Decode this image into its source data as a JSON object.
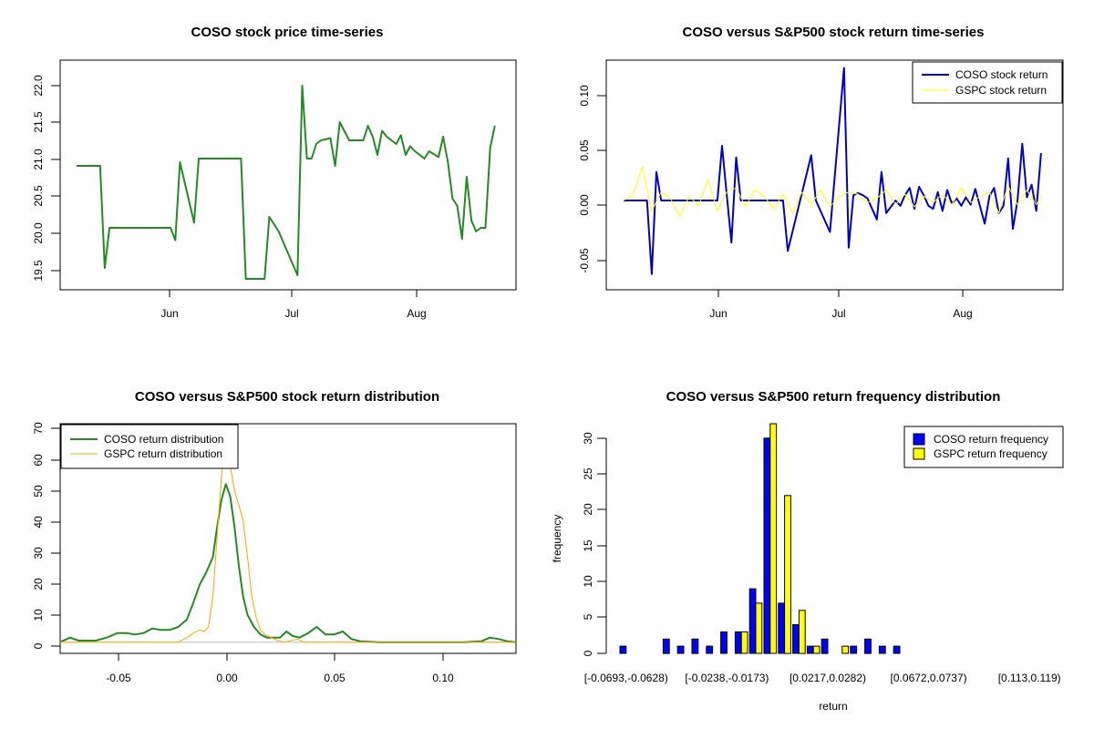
{
  "chart_data": [
    {
      "id": "price",
      "type": "line",
      "title": "COSO stock price time-series",
      "xlabel": "",
      "ylabel": "",
      "x_ticks": [
        "Jun",
        "Jul",
        "Aug"
      ],
      "y_ticks": [
        "19.5",
        "20.0",
        "20.5",
        "21.0",
        "21.5",
        "22.0"
      ],
      "xlim": [
        0,
        90
      ],
      "ylim": [
        19.3,
        22.3
      ],
      "series": [
        {
          "color": "#228B22",
          "x": [
            0,
            5,
            6,
            7,
            20,
            21,
            22,
            25,
            26,
            27,
            35,
            36,
            40,
            41,
            43,
            44,
            47,
            48,
            49,
            50,
            51,
            52,
            54,
            55,
            56,
            58,
            59,
            60,
            61,
            62,
            63,
            64,
            65,
            66,
            67,
            68,
            69,
            70,
            71,
            72,
            73,
            74,
            75,
            77,
            78,
            79,
            80,
            81,
            82,
            83,
            84,
            85,
            86,
            87,
            88,
            89
          ],
          "y": [
            20.9,
            20.9,
            19.5,
            20.05,
            20.05,
            19.88,
            20.95,
            20.12,
            21.0,
            21.0,
            21.0,
            19.35,
            19.35,
            20.2,
            20.0,
            19.85,
            19.4,
            22.0,
            21.0,
            21.0,
            21.2,
            21.25,
            21.28,
            20.9,
            21.5,
            21.25,
            21.25,
            21.25,
            21.25,
            21.45,
            21.3,
            21.05,
            21.38,
            21.3,
            21.25,
            21.2,
            21.32,
            21.05,
            21.17,
            21.1,
            21.05,
            21.0,
            21.1,
            21.02,
            21.3,
            20.95,
            20.45,
            20.35,
            19.9,
            20.75,
            20.15,
            20.0,
            20.05,
            20.05,
            21.15,
            21.45
          ]
        }
      ]
    },
    {
      "id": "returns",
      "type": "line",
      "title": "COSO versus S&P500 stock return time-series",
      "xlabel": "",
      "ylabel": "",
      "x_ticks": [
        "Jun",
        "Jul",
        "Aug"
      ],
      "y_ticks": [
        "-0.05",
        "0.00",
        "0.05",
        "0.10"
      ],
      "xlim": [
        0,
        90
      ],
      "ylim": [
        -0.078,
        0.13
      ],
      "legend": [
        "COSO stock return",
        "GSPC stock return"
      ],
      "legend_position": "top-right",
      "series": [
        {
          "name": "COSO stock return",
          "color": "#0000CD",
          "x": [
            0,
            5,
            6,
            7,
            8,
            20,
            21,
            22,
            23,
            24,
            25,
            26,
            27,
            34,
            35,
            36,
            40,
            41,
            44,
            47,
            48,
            49,
            50,
            51,
            52,
            54,
            55,
            56,
            58,
            59,
            60,
            61,
            62,
            63,
            64,
            65,
            66,
            67,
            68,
            69,
            70,
            71,
            72,
            73,
            74,
            75,
            77,
            78,
            79,
            80,
            81,
            82,
            83,
            84,
            85,
            86,
            87,
            88,
            89
          ],
          "y": [
            0,
            0,
            -0.07,
            0.027,
            0,
            0,
            0.052,
            0.005,
            -0.04,
            0.041,
            0,
            0,
            0,
            0,
            -0.048,
            -0.03,
            0.043,
            0,
            -0.03,
            0.126,
            -0.045,
            0.005,
            0.007,
            0.005,
            0.002,
            -0.018,
            0.027,
            -0.012,
            0,
            -0.005,
            0.005,
            0.012,
            -0.008,
            0.013,
            0.005,
            -0.005,
            -0.008,
            0.008,
            -0.01,
            0.01,
            -0.003,
            0.002,
            -0.005,
            0.003,
            -0.004,
            0.011,
            -0.022,
            0.004,
            0.012,
            -0.012,
            -0.005,
            0.04,
            -0.027,
            0,
            0.054,
            0.003,
            0.015,
            -0.01,
            0.045
          ]
        },
        {
          "name": "GSPC stock return",
          "color": "#FFFF00",
          "x": [
            0,
            2,
            4,
            6,
            8,
            10,
            12,
            14,
            16,
            18,
            20,
            22,
            24,
            26,
            28,
            30,
            32,
            34,
            36,
            38,
            40,
            42,
            44,
            46,
            48,
            50,
            52,
            54,
            56,
            58,
            60,
            62,
            64,
            66,
            68,
            70,
            72,
            74,
            76,
            78,
            80,
            82,
            84,
            86,
            88,
            89
          ],
          "y": [
            0,
            0.005,
            0.032,
            -0.01,
            0.008,
            0.002,
            -0.015,
            0.004,
            -0.005,
            0.02,
            -0.01,
            0.008,
            0.012,
            -0.006,
            0.01,
            0.004,
            -0.008,
            0.006,
            -0.012,
            0.008,
            -0.004,
            0.01,
            -0.006,
            0.004,
            0.008,
            0.006,
            -0.002,
            0.002,
            0.01,
            -0.004,
            0.006,
            -0.006,
            0.004,
            -0.002,
            0.006,
            -0.004,
            0.012,
            -0.002,
            0.004,
            0.008,
            -0.012,
            0.014,
            -0.004,
            0.01,
            -0.004,
            0.004
          ]
        }
      ]
    },
    {
      "id": "density",
      "type": "line",
      "title": "COSO versus S&P500 stock return distribution",
      "xlabel": "",
      "ylabel": "",
      "x_ticks": [
        "-0.05",
        "0.00",
        "0.05",
        "0.10"
      ],
      "y_ticks": [
        "0",
        "10",
        "20",
        "30",
        "40",
        "50",
        "60",
        "70"
      ],
      "xlim": [
        -0.0765,
        0.134
      ],
      "ylim": [
        -2.5,
        71
      ],
      "legend": [
        "COSO return distribution",
        "GSPC return distribution"
      ],
      "legend_position": "top-left",
      "series": [
        {
          "name": "COSO return distribution",
          "color": "#228B22",
          "x": [
            -0.0765,
            -0.072,
            -0.068,
            -0.064,
            -0.06,
            -0.055,
            -0.05,
            -0.046,
            -0.042,
            -0.038,
            -0.034,
            -0.03,
            -0.026,
            -0.022,
            -0.018,
            -0.015,
            -0.012,
            -0.009,
            -0.006,
            -0.004,
            -0.002,
            0,
            0.002,
            0.004,
            0.006,
            0.008,
            0.01,
            0.013,
            0.016,
            0.019,
            0.022,
            0.025,
            0.028,
            0.031,
            0.034,
            0.038,
            0.042,
            0.046,
            0.05,
            0.054,
            0.058,
            0.062,
            0.07,
            0.08,
            0.09,
            0.1,
            0.11,
            0.118,
            0.122,
            0.126,
            0.13,
            0.134
          ],
          "y": [
            0,
            1.5,
            0.5,
            0.5,
            0.5,
            1.5,
            3,
            3,
            2.5,
            3,
            4.5,
            4,
            4,
            5,
            7.5,
            13,
            19,
            23,
            28,
            38,
            47,
            52,
            48,
            38,
            25,
            15,
            9,
            5,
            2.5,
            1.5,
            1.5,
            1.5,
            3.5,
            2,
            1.5,
            3,
            5,
            2.5,
            2.5,
            3.5,
            1,
            0.3,
            0,
            0,
            0,
            0,
            0,
            0.3,
            1.5,
            1,
            0.3,
            0
          ]
        },
        {
          "name": "GSPC return distribution",
          "color": "#FFA500",
          "x": [
            -0.0765,
            -0.022,
            -0.018,
            -0.015,
            -0.012,
            -0.01,
            -0.008,
            -0.006,
            -0.004,
            -0.002,
            0,
            0.002,
            0.004,
            0.006,
            0.008,
            0.01,
            0.012,
            0.014,
            0.016,
            0.018,
            0.021,
            0.024,
            0.027,
            0.03,
            0.033,
            0.036,
            0.134
          ],
          "y": [
            0,
            0,
            1.5,
            3,
            4,
            3.5,
            5,
            15,
            35,
            55,
            65,
            58,
            50,
            45,
            40,
            28,
            15,
            8,
            4,
            2.5,
            1.5,
            0.5,
            0,
            0.5,
            1,
            0,
            0
          ]
        },
        {
          "name": "",
          "color": "#BEBEBE",
          "x": [
            -0.0765,
            0.134
          ],
          "y": [
            0,
            0
          ]
        }
      ]
    },
    {
      "id": "frequency",
      "type": "bar",
      "title": "COSO versus S&P500 return frequency distribution",
      "xlabel": "return",
      "ylabel": "frequency",
      "x_ticks": [
        "[-0.0693,-0.0628)",
        "[-0.0238,-0.0173)",
        "[0.0217,0.0282)",
        "[0.0672,0.0737)",
        "[0.113,0.119)"
      ],
      "x_tick_bins": [
        0,
        7,
        14,
        21,
        28
      ],
      "y_ticks": [
        "0",
        "5",
        "10",
        "15",
        "20",
        "25",
        "30"
      ],
      "ylim": [
        0,
        32
      ],
      "legend": [
        "COSO return frequency",
        "GSPC return frequency"
      ],
      "legend_position": "top-right",
      "series": [
        {
          "name": "COSO return frequency",
          "color": "#0000FF",
          "values": [
            1,
            0,
            0,
            2,
            1,
            2,
            1,
            3,
            3,
            9,
            30,
            7,
            4,
            1,
            2,
            0,
            1,
            2,
            1,
            1,
            0,
            0,
            0,
            0,
            0,
            0,
            0,
            0,
            0
          ]
        },
        {
          "name": "GSPC return frequency",
          "color": "#FFFF00",
          "values": [
            0,
            0,
            0,
            0,
            0,
            0,
            0,
            0,
            3,
            7,
            32,
            22,
            6,
            1,
            0,
            1,
            0,
            0,
            0,
            0,
            0,
            0,
            0,
            0,
            0,
            0,
            0,
            0,
            0
          ]
        }
      ]
    }
  ]
}
